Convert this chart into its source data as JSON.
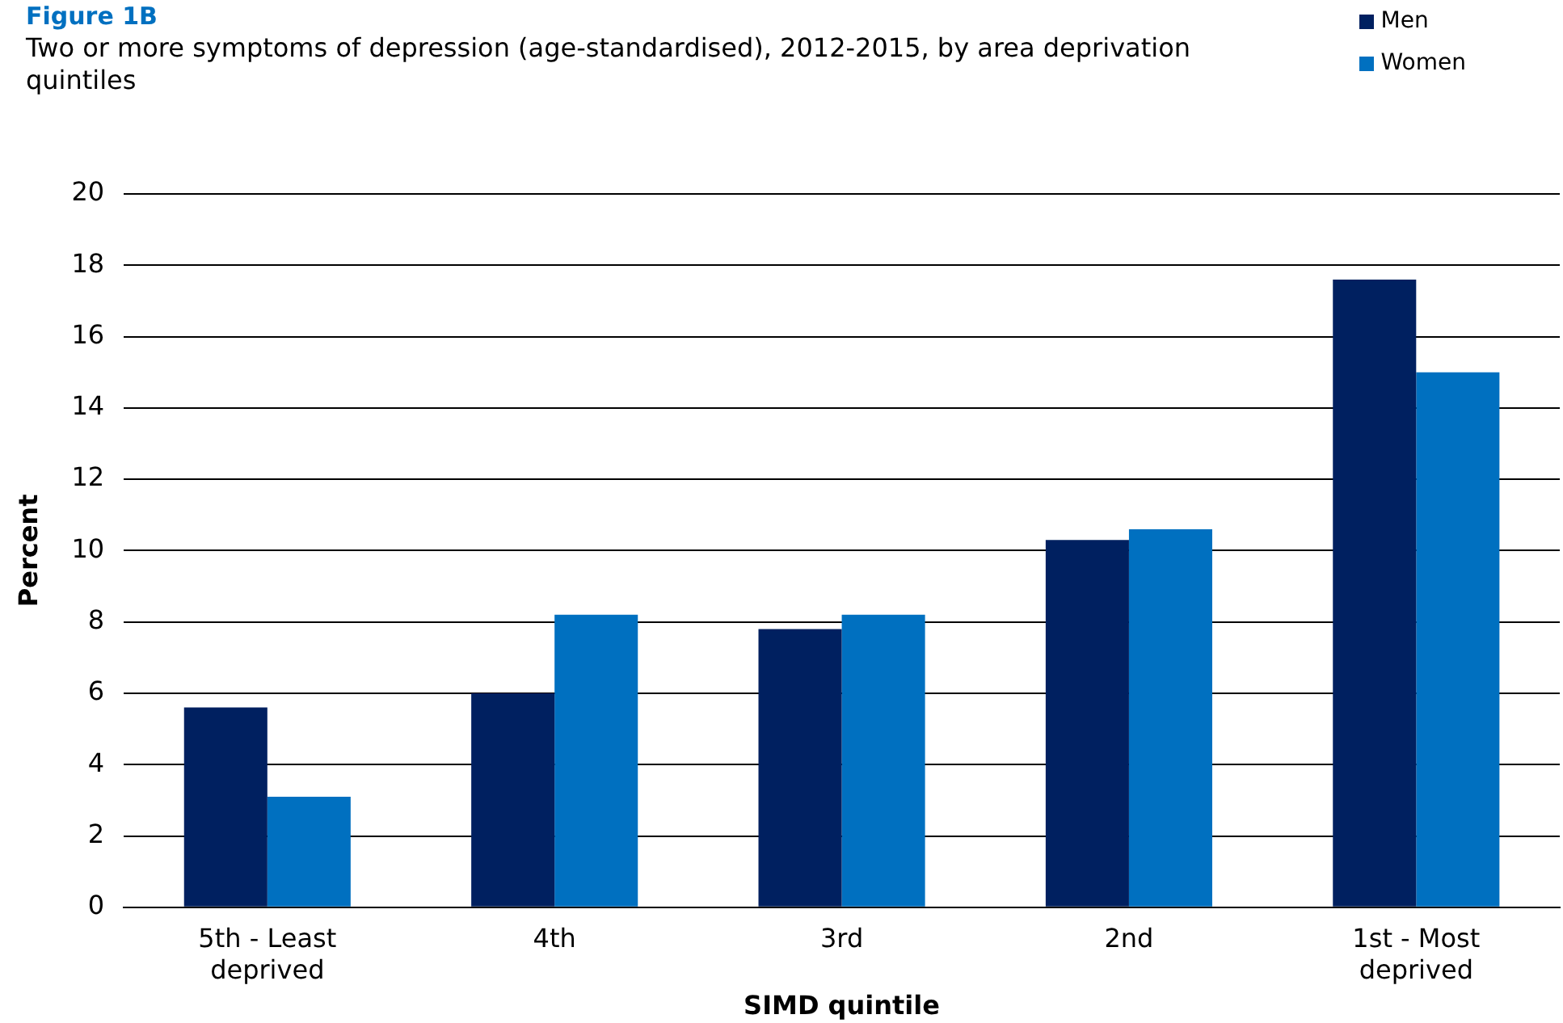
{
  "chart_data": {
    "type": "bar",
    "title": "Figure 1B",
    "subtitle": "Two or more symptoms of depression (age-standardised), 2012-2015,  by area deprivation quintiles",
    "xlabel": "SIMD quintile",
    "ylabel": "Percent",
    "categories": [
      "5th - Least\ndeprived",
      "4th",
      "3rd",
      "2nd",
      "1st - Most\ndeprived"
    ],
    "series": [
      {
        "name": "Men",
        "color": "#002060",
        "values": [
          5.6,
          6.0,
          7.8,
          10.3,
          17.6
        ]
      },
      {
        "name": "Women",
        "color": "#0070c0",
        "values": [
          3.1,
          8.2,
          8.2,
          10.6,
          15.0
        ]
      }
    ],
    "ylim": [
      0,
      20
    ],
    "yticks": [
      0,
      2,
      4,
      6,
      8,
      10,
      12,
      14,
      16,
      18,
      20
    ],
    "grid": "y",
    "legend": "top right"
  }
}
